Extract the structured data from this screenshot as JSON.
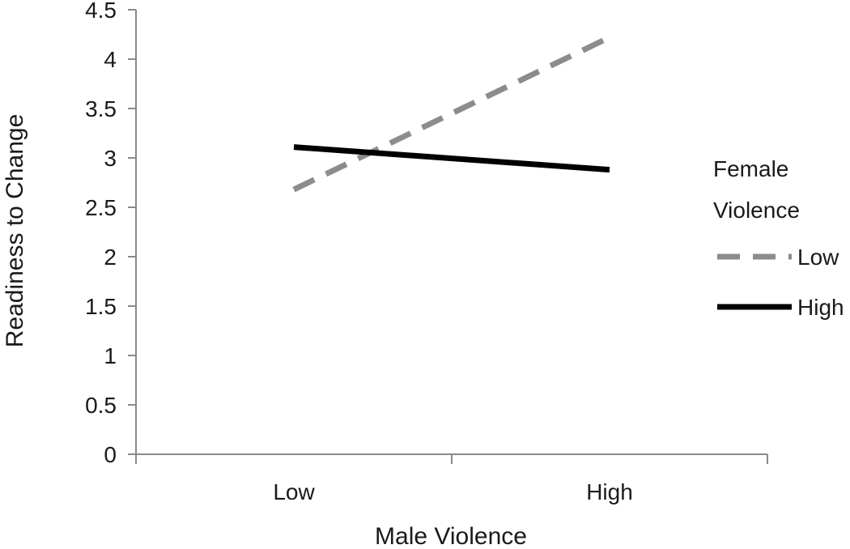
{
  "chart_data": {
    "type": "line",
    "title": "",
    "xlabel": "Male Violence",
    "ylabel": "Readiness to Change",
    "categories": [
      "Low",
      "High"
    ],
    "ylim": [
      0,
      4.5
    ],
    "yticks": [
      "0",
      "0.5",
      "1",
      "1.5",
      "2",
      "2.5",
      "3",
      "3.5",
      "4",
      "4.5"
    ],
    "grid": false,
    "legend": {
      "title_lines": [
        "Female",
        "Violence"
      ],
      "placement": "right"
    },
    "series": [
      {
        "name": "Low",
        "values": [
          2.68,
          4.22
        ],
        "color": "#8c8c8c",
        "style": "dashed"
      },
      {
        "name": "High",
        "values": [
          3.11,
          2.88
        ],
        "color": "#000000",
        "style": "solid"
      }
    ]
  }
}
